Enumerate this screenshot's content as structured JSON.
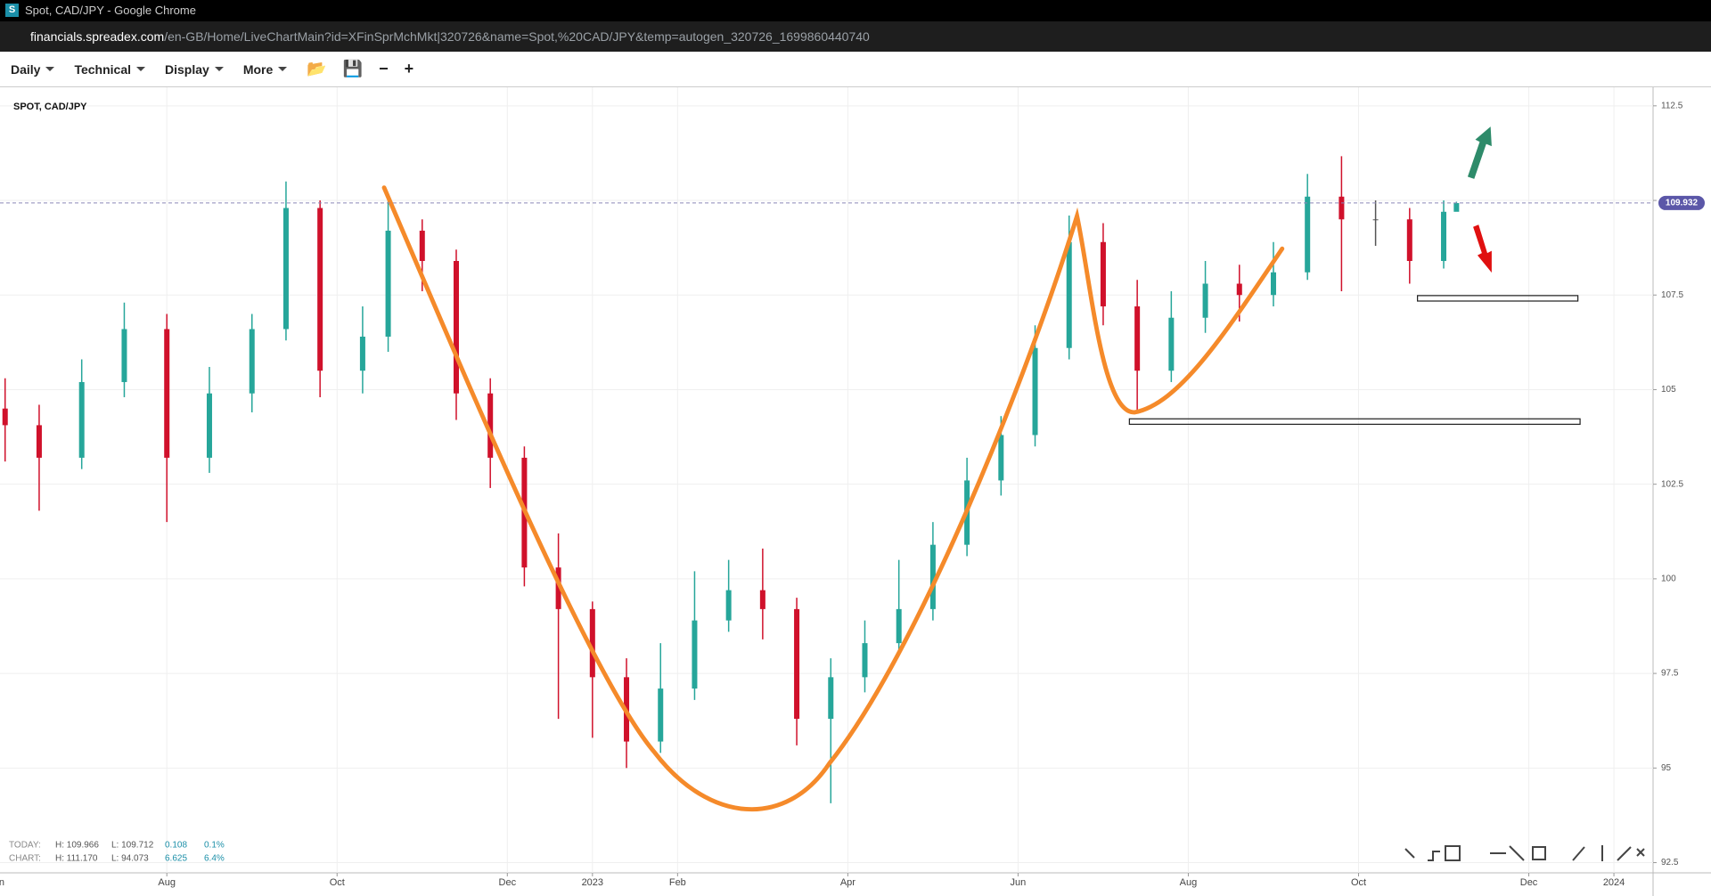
{
  "browser": {
    "tab_title": "Spot, CAD/JPY - Google Chrome",
    "url_host": "financials.spreadex.com",
    "url_path": "/en-GB/Home/LiveChartMain?id=XFinSprMchMkt|320726&name=Spot,%20CAD/JPY&temp=autogen_320726_1699860440740"
  },
  "toolbar": {
    "items": [
      "Daily",
      "Technical",
      "Display",
      "More"
    ]
  },
  "info": {
    "today": {
      "label": "TODAY:",
      "high": "H: 109.966",
      "low": "L: 109.712",
      "change": "0.108",
      "pct": "0.1%"
    },
    "chart": {
      "label": "CHART:",
      "high": "H: 111.170",
      "low": "L: 94.073",
      "change": "6.625",
      "pct": "6.4%"
    }
  },
  "chart_data": {
    "type": "candlestick",
    "title": "SPOT, CAD/JPY",
    "up_color": "#26a69a",
    "down_color": "#d0112b",
    "grid": true,
    "current_price": 109.932,
    "x": [
      0.1,
      0.5,
      1,
      1.5,
      2,
      2.5,
      3,
      3.4,
      3.8,
      4.3,
      4.6,
      5,
      5.4,
      5.8,
      6.2,
      6.6,
      7,
      7.4,
      7.8,
      8.2,
      8.6,
      9,
      9.4,
      9.8,
      10.2,
      10.6,
      11,
      11.4,
      11.8,
      12.2,
      12.6,
      13,
      13.4,
      13.8,
      14.2,
      14.6,
      15,
      15.4,
      15.8,
      16.2,
      16.6,
      17,
      17.15
    ],
    "open": [
      104.5,
      104.06,
      103.2,
      105.2,
      106.6,
      103.2,
      104.9,
      106.6,
      109.8,
      105.5,
      106.4,
      109.2,
      108.4,
      104.9,
      103.2,
      100.3,
      99.2,
      97.4,
      95.7,
      97.1,
      98.9,
      99.7,
      99.2,
      96.3,
      97.4,
      98.3,
      99.2,
      100.9,
      102.6,
      103.8,
      106.1,
      108.9,
      107.2,
      105.5,
      106.9,
      107.8,
      107.5,
      108.1,
      110.1,
      109.5,
      109.5,
      108.4,
      109.7
    ],
    "high": [
      105.3,
      104.6,
      105.8,
      107.3,
      107.0,
      105.6,
      107.0,
      110.5,
      110.0,
      107.2,
      110.1,
      109.5,
      108.7,
      105.3,
      103.5,
      101.2,
      99.4,
      97.9,
      98.3,
      100.2,
      100.5,
      100.8,
      99.5,
      97.9,
      98.9,
      100.5,
      101.5,
      103.2,
      104.3,
      106.7,
      109.6,
      109.4,
      107.9,
      107.6,
      108.4,
      108.3,
      108.9,
      110.7,
      111.17,
      110.0,
      109.8,
      110.0,
      109.966
    ],
    "low": [
      103.1,
      101.8,
      102.9,
      104.8,
      101.5,
      102.8,
      104.4,
      106.3,
      104.8,
      104.9,
      106.0,
      107.6,
      104.2,
      102.4,
      99.8,
      96.3,
      95.8,
      95.0,
      95.4,
      96.8,
      98.6,
      98.4,
      95.6,
      94.07,
      97.0,
      98.0,
      98.9,
      100.6,
      102.2,
      103.5,
      105.8,
      106.7,
      104.4,
      105.2,
      106.5,
      106.8,
      107.2,
      107.9,
      107.6,
      108.8,
      107.8,
      108.2,
      109.712
    ],
    "close": [
      104.06,
      103.2,
      105.2,
      106.6,
      103.2,
      104.9,
      106.6,
      109.8,
      105.5,
      106.4,
      109.2,
      108.4,
      104.9,
      103.2,
      100.3,
      99.2,
      97.4,
      95.7,
      97.1,
      98.9,
      99.7,
      99.2,
      96.3,
      97.4,
      98.3,
      99.2,
      100.9,
      102.6,
      103.8,
      106.1,
      108.9,
      107.2,
      105.5,
      106.9,
      107.8,
      107.5,
      108.1,
      110.1,
      109.5,
      109.5,
      108.4,
      109.7,
      109.93
    ],
    "xlim": [
      0.04,
      19.46
    ],
    "xticks": [
      {
        "value": 0,
        "label": "Jun"
      },
      {
        "value": 2,
        "label": "Aug"
      },
      {
        "value": 4,
        "label": "Oct"
      },
      {
        "value": 6,
        "label": "Dec"
      },
      {
        "value": 7,
        "label": "2023"
      },
      {
        "value": 8,
        "label": "Feb"
      },
      {
        "value": 10,
        "label": "Apr"
      },
      {
        "value": 12,
        "label": "Jun"
      },
      {
        "value": 14,
        "label": "Aug"
      },
      {
        "value": 16,
        "label": "Oct"
      },
      {
        "value": 18,
        "label": "Dec"
      },
      {
        "value": 19,
        "label": "2024"
      }
    ],
    "ylim": [
      92.23,
      112.99
    ],
    "yticks": [
      92.5,
      95,
      97.5,
      100,
      102.5,
      105,
      107.5,
      110,
      112.5
    ]
  }
}
